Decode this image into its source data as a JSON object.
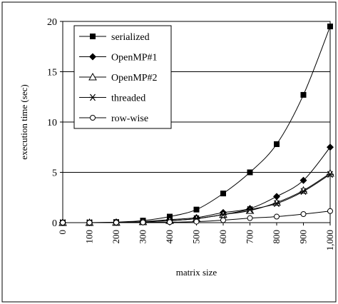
{
  "chart_data": {
    "type": "line",
    "title": "",
    "xlabel": "matrix size",
    "ylabel": "execution time (sec)",
    "x": [
      0,
      100,
      200,
      300,
      400,
      500,
      600,
      700,
      800,
      900,
      1000
    ],
    "x_tick_labels": [
      "0",
      "100",
      "200",
      "300",
      "400",
      "500",
      "600",
      "700",
      "800",
      "900",
      "1,000"
    ],
    "y_ticks": [
      0,
      5,
      10,
      15,
      20
    ],
    "xlim": [
      0,
      1000
    ],
    "ylim": [
      0,
      20
    ],
    "grid": "horizontal",
    "legend_position": "top-left",
    "series": [
      {
        "name": "serialized",
        "marker": "filled-square",
        "values": [
          0,
          0,
          0.05,
          0.2,
          0.6,
          1.3,
          2.9,
          5.0,
          7.8,
          12.7,
          19.5
        ]
      },
      {
        "name": "OpenMP#1",
        "marker": "filled-diamond",
        "values": [
          0,
          0,
          0.02,
          0.1,
          0.3,
          0.5,
          1.0,
          1.4,
          2.6,
          4.2,
          7.5
        ]
      },
      {
        "name": "OpenMP#2",
        "marker": "open-triangle",
        "values": [
          0,
          0,
          0.02,
          0.08,
          0.2,
          0.4,
          0.8,
          1.2,
          2.0,
          3.2,
          4.9
        ]
      },
      {
        "name": "threaded",
        "marker": "star",
        "values": [
          0,
          0,
          0.02,
          0.08,
          0.2,
          0.4,
          0.8,
          1.3,
          1.9,
          3.1,
          4.8
        ]
      },
      {
        "name": "row-wise",
        "marker": "open-circle",
        "values": [
          0,
          0,
          0.01,
          0.03,
          0.05,
          0.1,
          0.25,
          0.45,
          0.6,
          0.85,
          1.15
        ]
      }
    ],
    "colors": {
      "line": "#000000",
      "grid": "#000000",
      "background": "#ffffff"
    }
  }
}
